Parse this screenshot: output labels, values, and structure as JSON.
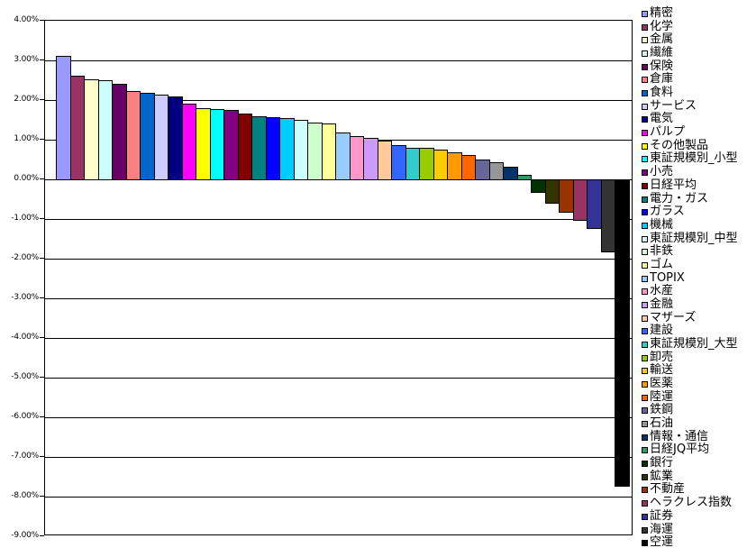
{
  "chart_data": {
    "type": "bar",
    "title": "",
    "xlabel": "",
    "ylabel": "",
    "ylim": [
      -9,
      4
    ],
    "ytick_step": 1,
    "ytick_labels": [
      "4.00%",
      "3.00%",
      "2.00%",
      "1.00%",
      "0.00%",
      "-1.00%",
      "-2.00%",
      "-3.00%",
      "-4.00%",
      "-5.00%",
      "-6.00%",
      "-7.00%",
      "-8.00%",
      "-9.00%"
    ],
    "grid": true,
    "legend_position": "right",
    "sort_order": "descending",
    "categories": [
      "精密",
      "化学",
      "金属",
      "繊維",
      "保険",
      "倉庫",
      "食料",
      "サービス",
      "電気",
      "パルプ",
      "その他製品",
      "東証規模別_小型",
      "小売",
      "日経平均",
      "電力・ガス",
      "ガラス",
      "機械",
      "東証規模別_中型",
      "非鉄",
      "ゴム",
      "TOPIX",
      "水産",
      "金融",
      "マザーズ",
      "建設",
      "東証規模別_大型",
      "卸売",
      "輸送",
      "医薬",
      "陸運",
      "鉄鋼",
      "石油",
      "情報・通信",
      "日経JQ平均",
      "銀行",
      "鉱業",
      "不動産",
      "ヘラクレス指数",
      "証券",
      "海運",
      "空運"
    ],
    "values": [
      3.11,
      2.61,
      2.52,
      2.5,
      2.41,
      2.23,
      2.18,
      2.14,
      2.09,
      1.91,
      1.8,
      1.78,
      1.76,
      1.66,
      1.59,
      1.56,
      1.54,
      1.5,
      1.43,
      1.42,
      1.18,
      1.08,
      1.05,
      0.97,
      0.86,
      0.8,
      0.79,
      0.75,
      0.68,
      0.62,
      0.5,
      0.43,
      0.32,
      0.11,
      -0.31,
      -0.58,
      -0.82,
      -1.03,
      -1.22,
      -1.82,
      -7.72
    ],
    "colors": [
      "#9999FF",
      "#993366",
      "#FFFFCC",
      "#CCFFFF",
      "#660066",
      "#FF8080",
      "#0066CC",
      "#CCCCFF",
      "#000080",
      "#FF00FF",
      "#FFFF00",
      "#00FFFF",
      "#800080",
      "#800000",
      "#008080",
      "#0000FF",
      "#00CCFF",
      "#CCFFFF",
      "#CCFFCC",
      "#FFFF99",
      "#99CCFF",
      "#FF99CC",
      "#CC99FF",
      "#FFCC99",
      "#3366FF",
      "#33CCCC",
      "#99CC00",
      "#FFCC00",
      "#FF9900",
      "#FF6600",
      "#666699",
      "#969696",
      "#003366",
      "#339966",
      "#003300",
      "#333300",
      "#993300",
      "#993366",
      "#333399",
      "#333333",
      "#000000"
    ],
    "axis_color": "#000000",
    "background_color": "#FFFFFF"
  }
}
